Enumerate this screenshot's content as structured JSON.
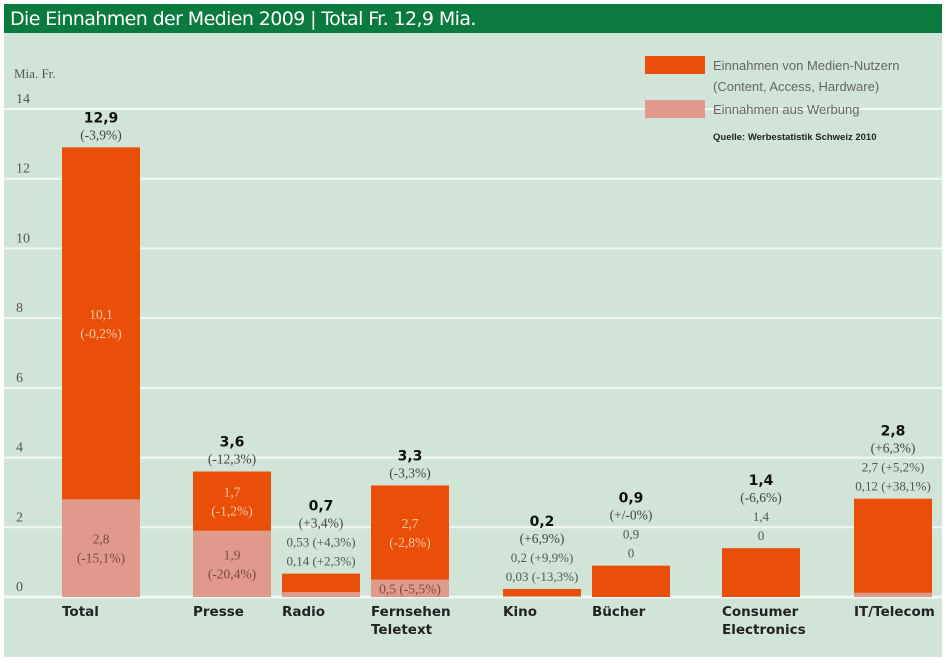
{
  "header": {
    "title": "Die Einnahmen der Medien 2009 | Total Fr. 12,9 Mia."
  },
  "legend": {
    "items": [
      {
        "label_line1": "Einnahmen von Medien-Nutzern",
        "label_line2": "(Content, Access, Hardware)",
        "color": "#ea4f0a"
      },
      {
        "label_line1": "Einnahmen aus Werbung",
        "label_line2": "",
        "color": "#e0998a"
      }
    ],
    "source": "Quelle: Werbestatistik Schweiz 2010"
  },
  "colors": {
    "user": "#ea4f0a",
    "ad": "#e0998a",
    "background": "#d0e4d8",
    "header": "#0b7a3e",
    "gridline": "#f2f8f4"
  },
  "chart_data": {
    "type": "bar",
    "stacked": true,
    "title": "Die Einnahmen der Medien 2009 | Total Fr. 12,9 Mia.",
    "xlabel": "",
    "ylabel": "Mia. Fr.",
    "ylim": [
      0,
      14
    ],
    "yticks": [
      0,
      2,
      4,
      6,
      8,
      10,
      12,
      14
    ],
    "grid": true,
    "legend_position": "top-right",
    "categories": [
      {
        "name": "Total",
        "label_lines": [
          "Total"
        ]
      },
      {
        "name": "Presse",
        "label_lines": [
          "Presse"
        ]
      },
      {
        "name": "Radio",
        "label_lines": [
          "Radio"
        ]
      },
      {
        "name": "Fernsehen Teletext",
        "label_lines": [
          "Fernsehen",
          "Teletext"
        ]
      },
      {
        "name": "Kino",
        "label_lines": [
          "Kino"
        ]
      },
      {
        "name": "Bücher",
        "label_lines": [
          "Bücher"
        ]
      },
      {
        "name": "Consumer Electronics",
        "label_lines": [
          "Consumer",
          "Electronics"
        ]
      },
      {
        "name": "IT/Telecom",
        "label_lines": [
          "IT/Telecom"
        ]
      }
    ],
    "series": [
      {
        "name": "Einnahmen aus Werbung",
        "key": "ad",
        "values": [
          2.8,
          1.9,
          0.14,
          0.5,
          0.03,
          0,
          0,
          0.12
        ]
      },
      {
        "name": "Einnahmen von Medien-Nutzern",
        "key": "user",
        "values": [
          10.1,
          1.7,
          0.53,
          2.7,
          0.2,
          0.9,
          1.4,
          2.7
        ]
      }
    ],
    "totals": [
      12.9,
      3.6,
      0.7,
      3.3,
      0.2,
      0.9,
      1.4,
      2.8
    ],
    "annotations": [
      {
        "total": "12,9",
        "change": "(-3,9%)",
        "inside_user": [
          "10,1",
          "(-0,2%)"
        ],
        "inside_ad": [
          "2,8",
          "(-15,1%)"
        ],
        "above_lines": []
      },
      {
        "total": "3,6",
        "change": "(-12,3%)",
        "inside_user": [
          "1,7",
          "(-1,2%)"
        ],
        "inside_ad": [
          "1,9",
          "(-20,4%)"
        ],
        "above_lines": []
      },
      {
        "total": "0,7",
        "change": "(+3,4%)",
        "inside_user": [],
        "inside_ad": [],
        "above_lines": [
          "0,53 (+4,3%)",
          "0,14 (+2,3%)"
        ]
      },
      {
        "total": "3,3",
        "change": "(-3,3%)",
        "inside_user": [
          "2,7",
          "(-2,8%)"
        ],
        "inside_ad": [
          "0,5 (-5,5%)"
        ],
        "above_lines": []
      },
      {
        "total": "0,2",
        "change": "(+6,9%)",
        "inside_user": [],
        "inside_ad": [],
        "above_lines": [
          "0,2 (+9,9%)",
          "0,03 (-13,3%)"
        ]
      },
      {
        "total": "0,9",
        "change": "(+/-0%)",
        "inside_user": [],
        "inside_ad": [],
        "above_lines": [
          "0,9",
          "0"
        ]
      },
      {
        "total": "1,4",
        "change": "(-6,6%)",
        "inside_user": [],
        "inside_ad": [],
        "above_lines": [
          "1,4",
          "0"
        ]
      },
      {
        "total": "2,8",
        "change": "(+6,3%)",
        "inside_user": [],
        "inside_ad": [],
        "above_lines": [
          "2,7 (+5,2%)",
          "0,12 (+38,1%)"
        ]
      }
    ]
  }
}
